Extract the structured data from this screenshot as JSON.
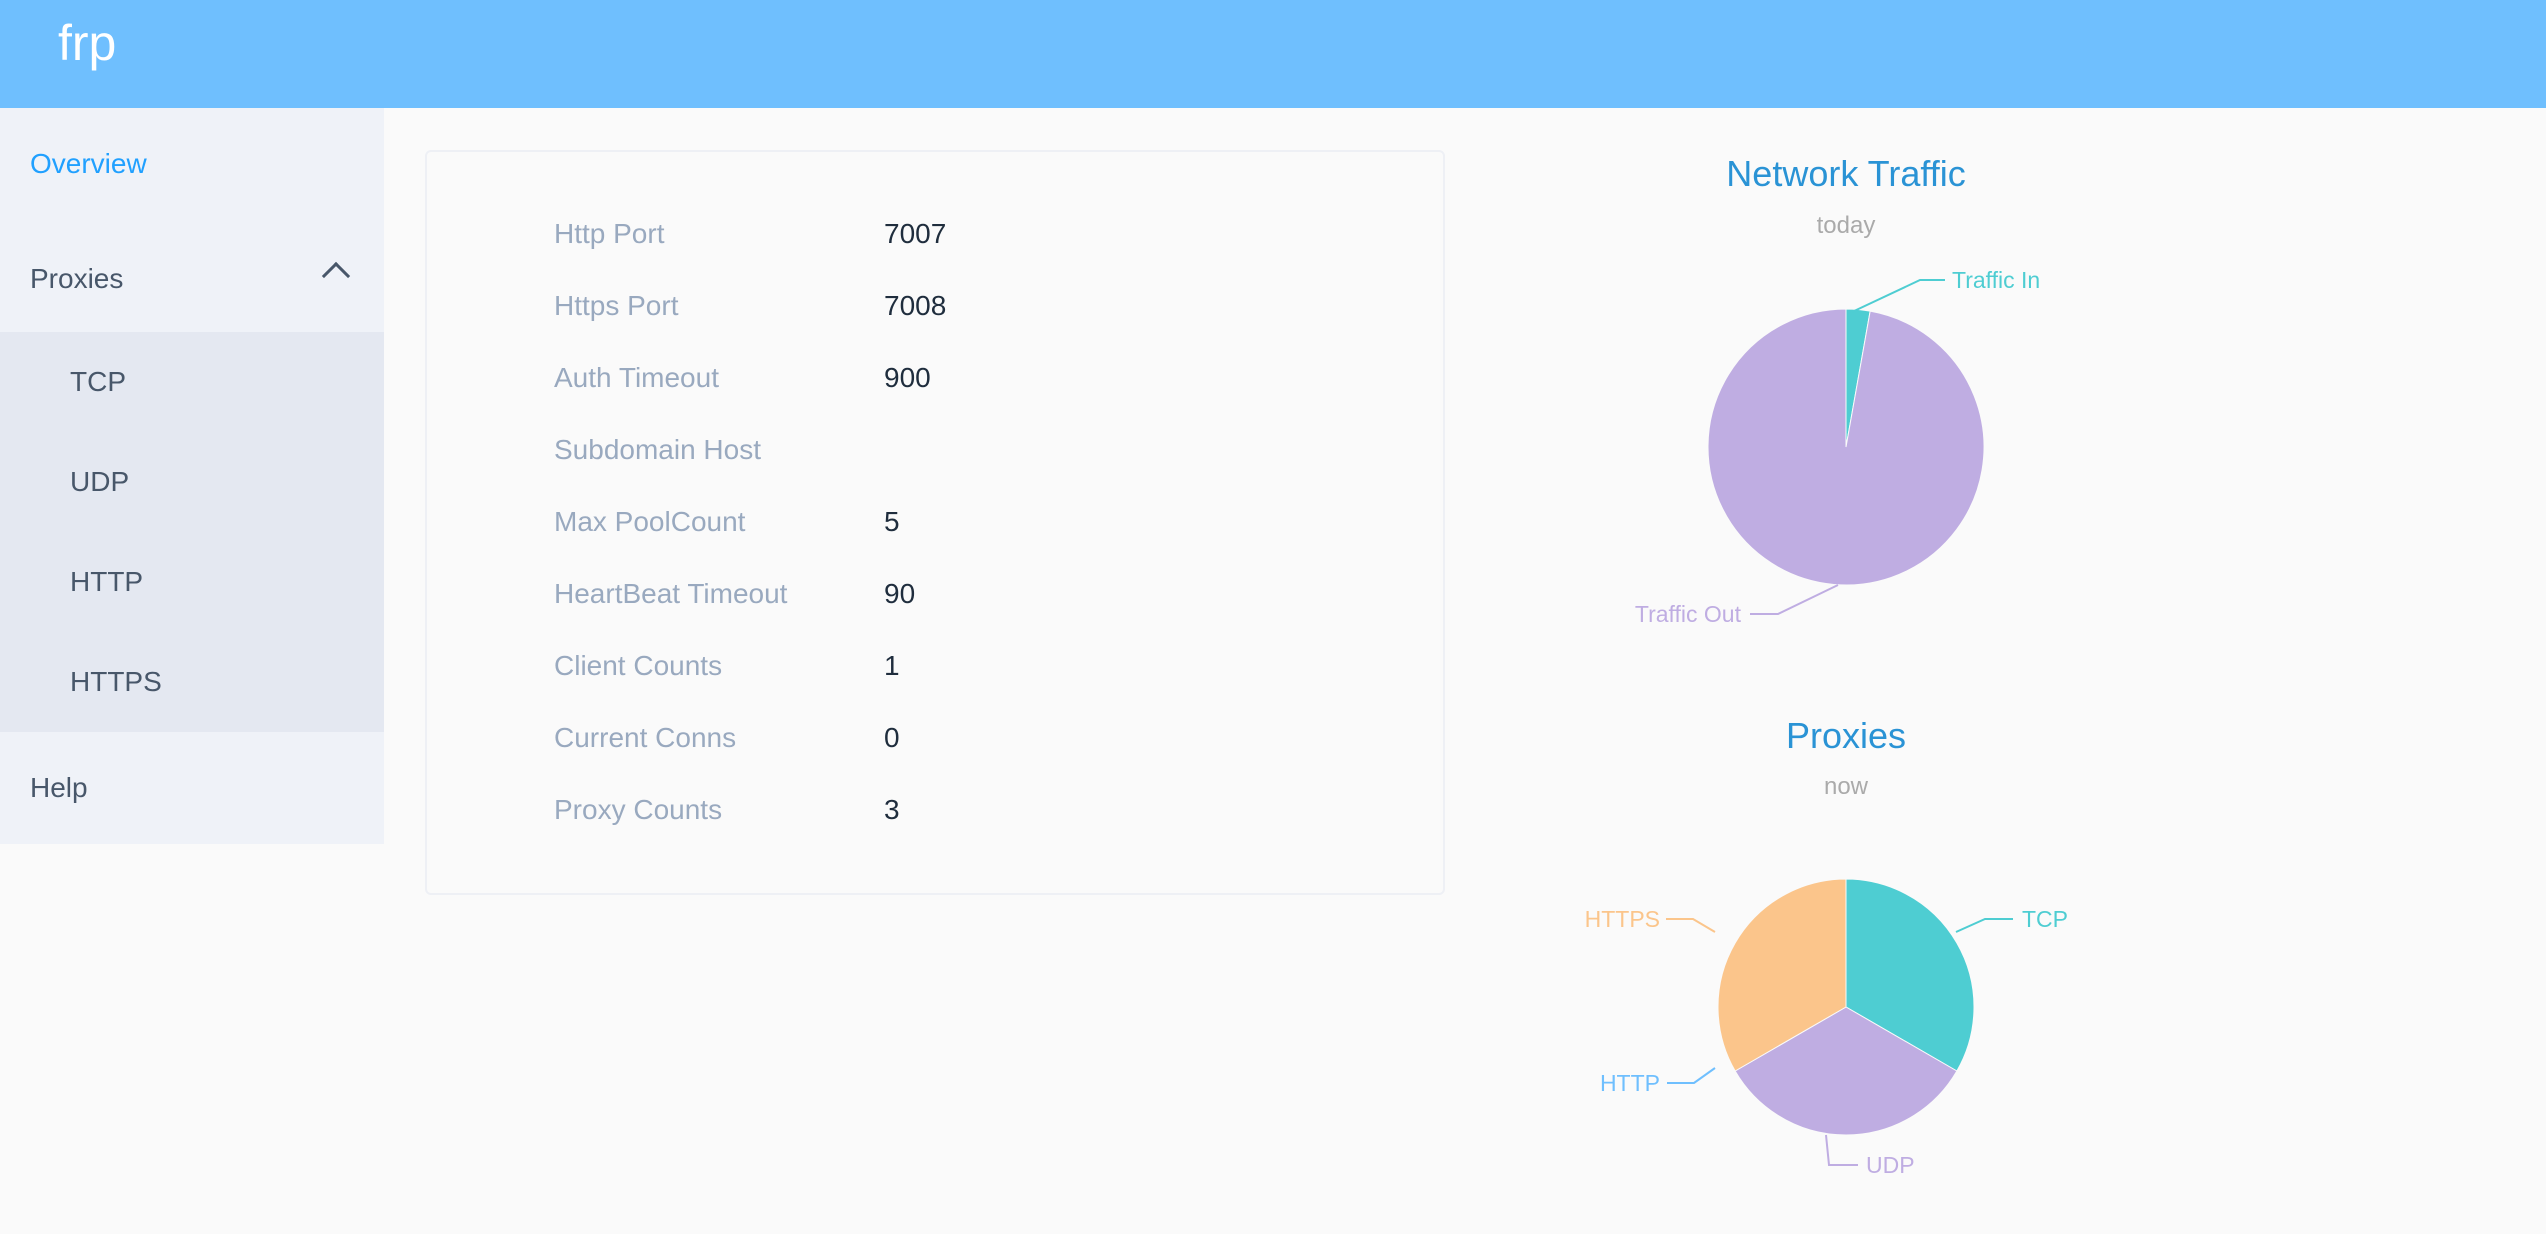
{
  "header": {
    "logo": "frp",
    "color": "#6fbffe"
  },
  "sidebar": {
    "overview": "Overview",
    "proxies": "Proxies",
    "proxy_items": [
      "TCP",
      "UDP",
      "HTTP",
      "HTTPS"
    ],
    "help": "Help",
    "active": "Overview"
  },
  "server_info": [
    {
      "label": "Http Port",
      "value": "7007"
    },
    {
      "label": "Https Port",
      "value": "7008"
    },
    {
      "label": "Auth Timeout",
      "value": "900"
    },
    {
      "label": "Subdomain Host",
      "value": ""
    },
    {
      "label": "Max PoolCount",
      "value": "5"
    },
    {
      "label": "HeartBeat Timeout",
      "value": "90"
    },
    {
      "label": "Client Counts",
      "value": "1"
    },
    {
      "label": "Current Conns",
      "value": "0"
    },
    {
      "label": "Proxy Counts",
      "value": "3"
    }
  ],
  "chart_data": [
    {
      "type": "pie",
      "title": "Network Traffic",
      "subtitle": "today",
      "slices": [
        {
          "name": "Traffic In",
          "value": 2.8,
          "color": "#4ecdd2"
        },
        {
          "name": "Traffic Out",
          "value": 97.2,
          "color": "#bfade2"
        }
      ]
    },
    {
      "type": "pie",
      "title": "Proxies",
      "subtitle": "now",
      "slices": [
        {
          "name": "TCP",
          "value": 1,
          "color": "#4ecdd2"
        },
        {
          "name": "UDP",
          "value": 1,
          "color": "#bfade2"
        },
        {
          "name": "HTTP",
          "value": 0,
          "color": "#6fbffe"
        },
        {
          "name": "HTTPS",
          "value": 1,
          "color": "#fbc58b"
        }
      ]
    }
  ]
}
